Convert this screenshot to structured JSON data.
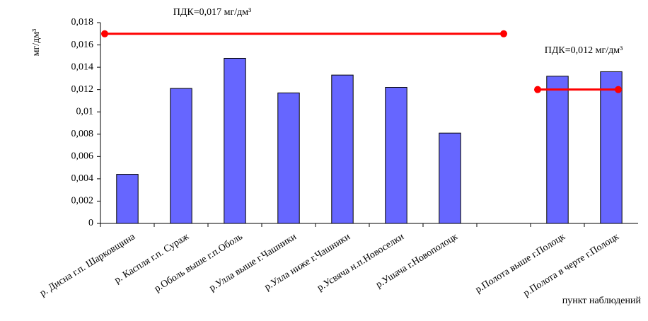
{
  "chart_data": {
    "type": "bar",
    "y_label": "мг/дм³",
    "x_label": "пункт наблюдений",
    "categories": [
      "р. Дисна г.п. Шарковщина",
      "р. Каспля г.п. Сураж",
      "р.Оболь выше г.п.Оболь",
      "р.Улла выше г.Чашники",
      "р.Улла ниже г.Чашники",
      "р.Усвяча н.п.Новоселки",
      "р.Ушача г.Новополоцк",
      null,
      "р.Полота выше г.Полоцк",
      "р.Полота в черте г.Полоцк"
    ],
    "values": [
      0.0044,
      0.0121,
      0.0148,
      0.0117,
      0.0133,
      0.0122,
      0.0081,
      null,
      0.0132,
      0.0136
    ],
    "color": "#6666ff",
    "reference_lines": [
      {
        "label": "ПДК=0,017 мг/дм³",
        "color": "#ff0000",
        "values": [
          0.017,
          0.017,
          0.017,
          0.017,
          0.017,
          0.017,
          0.017,
          0.017,
          null,
          null
        ]
      },
      {
        "label": "ПДК=0,012 мг/дм³",
        "color": "#ff0000",
        "values": [
          null,
          null,
          null,
          null,
          null,
          null,
          null,
          null,
          0.012,
          0.012
        ]
      }
    ],
    "ylim": [
      0,
      0.018
    ],
    "yticks": [
      0,
      {
        "value": 0.002,
        "label": "0,002"
      },
      {
        "value": 0.004,
        "label": "0,004"
      },
      {
        "value": 0.006,
        "label": "0,006"
      },
      {
        "value": 0.008,
        "label": "0,008"
      },
      {
        "value": 0.01,
        "label": "0,01"
      },
      {
        "value": 0.012,
        "label": "0,012"
      },
      {
        "value": 0.014,
        "label": "0,014"
      },
      {
        "value": 0.016,
        "label": "0,016"
      },
      {
        "value": 0.018,
        "label": "0,018"
      }
    ]
  }
}
